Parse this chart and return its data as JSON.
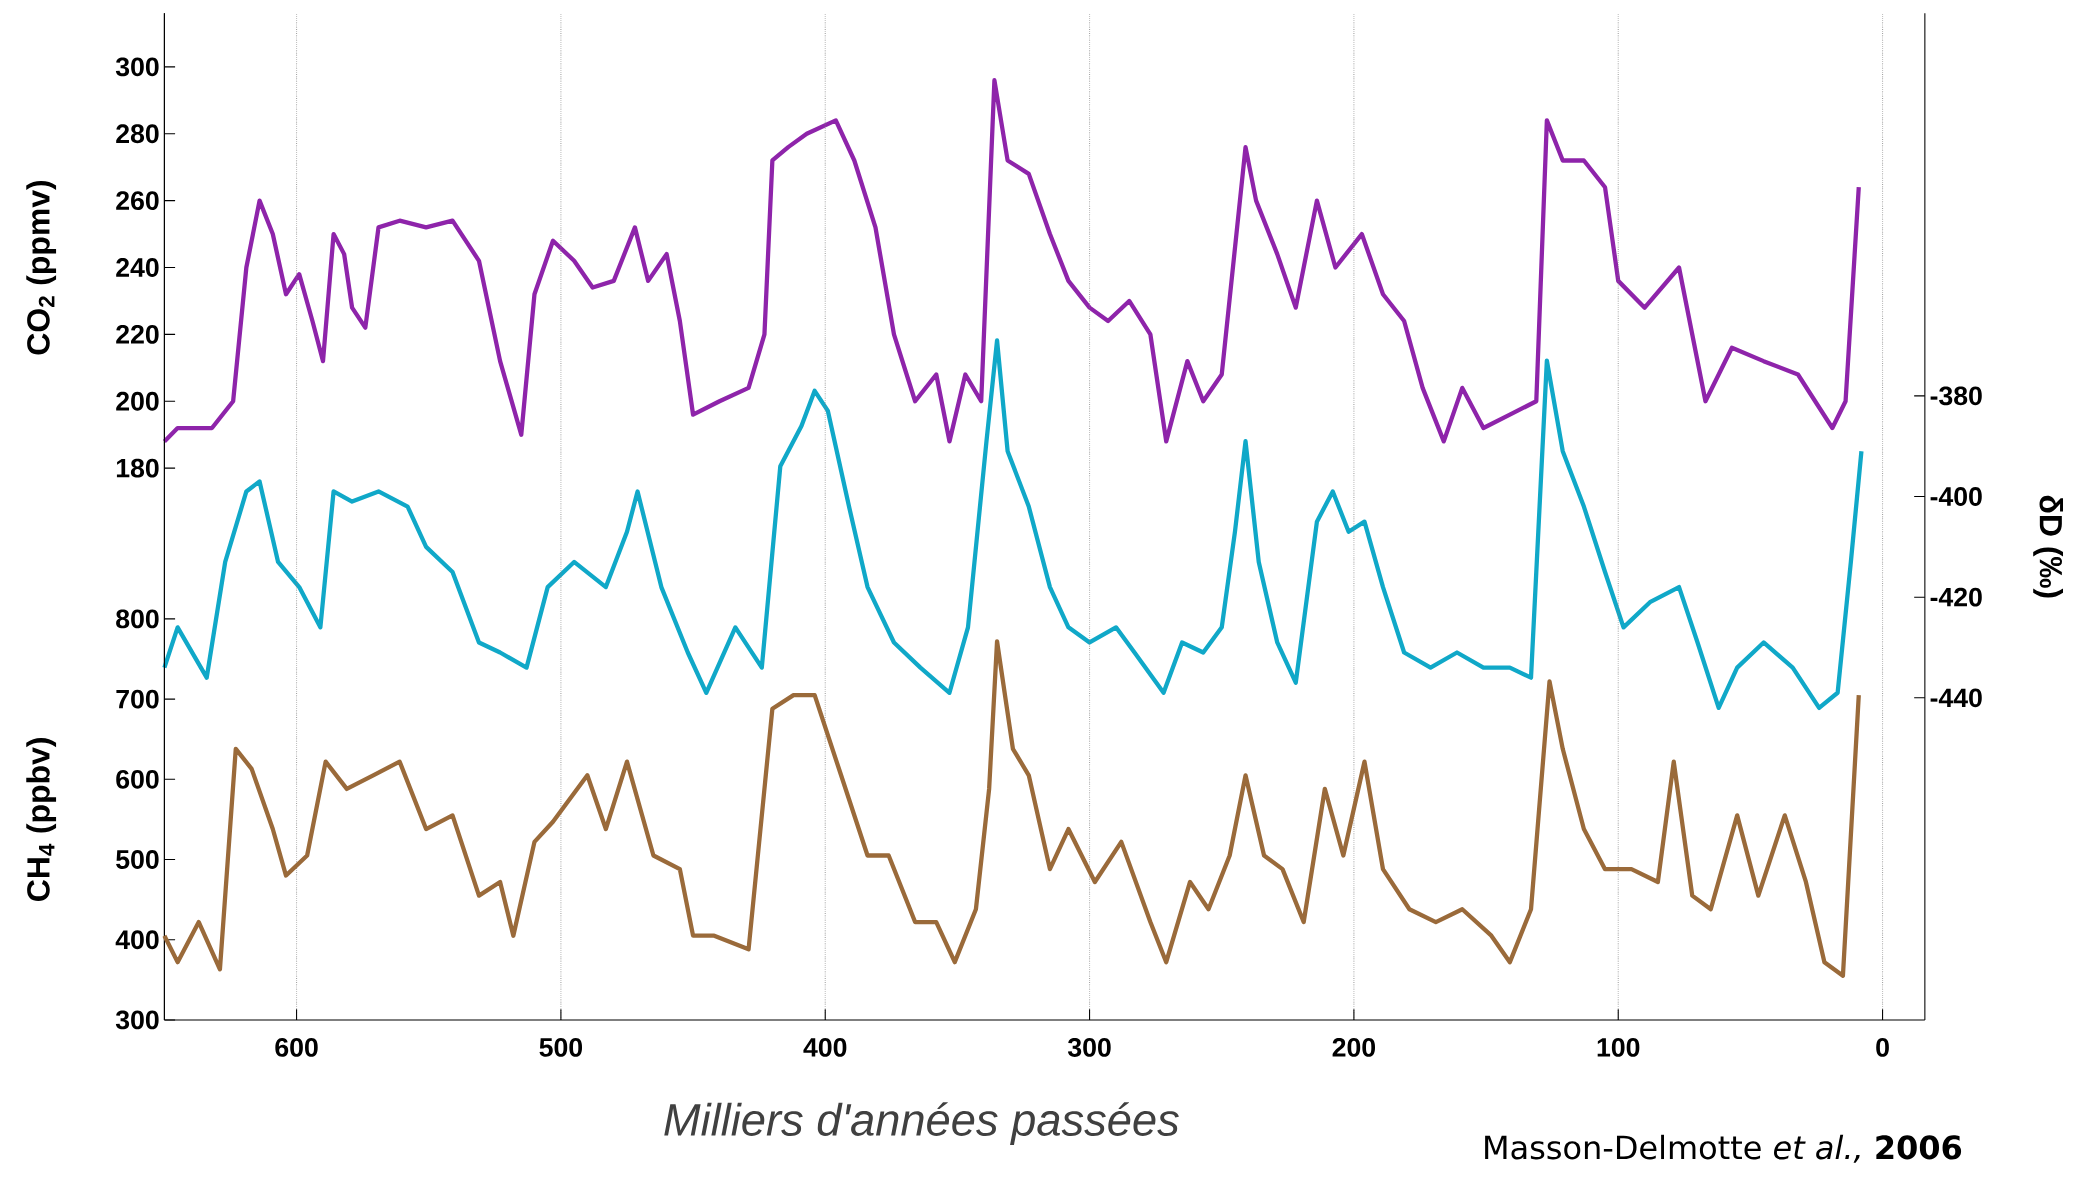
{
  "chart_data": [
    {
      "type": "line",
      "ylabel": "CO$_{2}$ (ppmv)",
      "xlim": [
        650,
        -16
      ],
      "ylim": [
        15,
        316
      ],
      "yticks": [
        180,
        200,
        220,
        240,
        260,
        280,
        300
      ],
      "tick_labels": "y",
      "series": [
        {
          "color": "#8e24aa",
          "x": [
            650,
            645,
            632,
            624,
            619,
            614,
            609,
            604,
            599,
            594,
            590,
            586,
            582,
            579,
            574,
            569,
            561,
            551,
            541,
            531,
            523,
            515,
            510,
            503,
            495,
            488,
            480,
            472,
            467,
            460,
            455,
            450,
            440,
            429,
            423,
            420,
            414,
            407,
            396,
            389,
            381,
            374,
            366,
            358,
            353,
            347,
            341,
            336,
            331,
            323,
            315,
            308,
            300,
            293,
            285,
            277,
            271,
            263,
            257,
            250,
            241,
            237,
            229,
            222,
            214,
            207,
            197,
            189,
            181,
            174,
            166,
            159,
            151,
            141,
            131,
            127,
            121,
            113,
            105,
            100,
            90,
            77,
            67,
            57,
            45,
            32,
            19,
            14,
            9
          ],
          "values": [
            188,
            192,
            192,
            200,
            240,
            260,
            250,
            232,
            238,
            224,
            212,
            250,
            244,
            228,
            222,
            252,
            254,
            252,
            254,
            242,
            212,
            190,
            232,
            248,
            242,
            234,
            236,
            252,
            236,
            244,
            224,
            196,
            200,
            204,
            220,
            272,
            276,
            280,
            284,
            272,
            252,
            220,
            200,
            208,
            188,
            208,
            200,
            296,
            272,
            268,
            250,
            236,
            228,
            224,
            230,
            220,
            188,
            212,
            200,
            208,
            276,
            260,
            244,
            228,
            260,
            240,
            250,
            232,
            224,
            204,
            188,
            204,
            192,
            196,
            200,
            284,
            272,
            272,
            264,
            236,
            228,
            240,
            200,
            216,
            212,
            208,
            192,
            200,
            264
          ]
        }
      ]
    },
    {
      "type": "line",
      "y2label": "δD (‰)",
      "xlim": [
        650,
        -16
      ],
      "y2lim": [
        -504,
        -304
      ],
      "y2ticks": [
        -440,
        -420,
        -400,
        -380
      ],
      "tick_labels": "y",
      "series": [
        {
          "color": "#10a8c8",
          "axis": "y2",
          "x": [
            650,
            645,
            634,
            627,
            619,
            614,
            607,
            599,
            591,
            586,
            579,
            569,
            558,
            551,
            541,
            531,
            523,
            513,
            505,
            495,
            483,
            475,
            471,
            462,
            452,
            445,
            434,
            424,
            417,
            409,
            404,
            399,
            391,
            384,
            374,
            364,
            353,
            346,
            339,
            335,
            331,
            323,
            315,
            308,
            300,
            290,
            283,
            272,
            265,
            257,
            250,
            245,
            241,
            236,
            229,
            222,
            214,
            208,
            202,
            196,
            189,
            181,
            171,
            161,
            151,
            141,
            133,
            127,
            121,
            113,
            105,
            98,
            88,
            77,
            70,
            62,
            55,
            45,
            34,
            24,
            17,
            12,
            8
          ],
          "values": [
            -434,
            -426,
            -436,
            -413,
            -399,
            -397,
            -413,
            -418,
            -426,
            -399,
            -401,
            -399,
            -402,
            -410,
            -415,
            -429,
            -431,
            -434,
            -418,
            -413,
            -418,
            -407,
            -399,
            -418,
            -431,
            -439,
            -426,
            -434,
            -394,
            -386,
            -379,
            -383,
            -402,
            -418,
            -429,
            -434,
            -439,
            -426,
            -389,
            -369,
            -391,
            -402,
            -418,
            -426,
            -429,
            -426,
            -431,
            -439,
            -429,
            -431,
            -426,
            -407,
            -389,
            -413,
            -429,
            -437,
            -405,
            -399,
            -407,
            -405,
            -418,
            -431,
            -434,
            -431,
            -434,
            -434,
            -436,
            -373,
            -391,
            -402,
            -415,
            -426,
            -421,
            -418,
            -429,
            -442,
            -434,
            -429,
            -434,
            -442,
            -439,
            -413,
            -391
          ]
        }
      ]
    },
    {
      "type": "line",
      "ylabel": "CH$_{4}$ (ppbv)",
      "xlabel": "Milliers d'années passées",
      "xlim": [
        650,
        -16
      ],
      "xticks": [
        600,
        500,
        400,
        300,
        200,
        100,
        0
      ],
      "ylim": [
        300,
        1555
      ],
      "yticks": [
        300,
        400,
        500,
        600,
        700,
        800
      ],
      "grid": "x",
      "annotations": [
        "Masson-Delmotte *et al.,* **2006**"
      ],
      "series": [
        {
          "color": "#9a6a3a",
          "x": [
            650,
            645,
            637,
            629,
            623,
            617,
            609,
            604,
            596,
            589,
            581,
            571,
            561,
            551,
            541,
            531,
            523,
            518,
            510,
            503,
            490,
            483,
            475,
            465,
            455,
            450,
            442,
            429,
            420,
            412,
            404,
            394,
            384,
            376,
            366,
            358,
            351,
            343,
            338,
            335,
            329,
            323,
            315,
            308,
            298,
            288,
            277,
            271,
            262,
            255,
            247,
            241,
            234,
            227,
            219,
            211,
            204,
            196,
            189,
            179,
            169,
            159,
            148,
            141,
            133,
            126,
            121,
            113,
            105,
            95,
            85,
            79,
            72,
            65,
            55,
            47,
            37,
            29,
            22,
            15,
            9
          ],
          "values": [
            405,
            372,
            422,
            363,
            638,
            613,
            538,
            480,
            505,
            622,
            588,
            605,
            622,
            538,
            555,
            455,
            472,
            405,
            522,
            547,
            605,
            538,
            622,
            505,
            488,
            405,
            405,
            388,
            688,
            705,
            705,
            605,
            505,
            505,
            422,
            422,
            372,
            438,
            588,
            772,
            638,
            605,
            488,
            538,
            472,
            522,
            422,
            372,
            472,
            438,
            505,
            605,
            505,
            488,
            422,
            588,
            505,
            622,
            488,
            438,
            422,
            438,
            405,
            372,
            438,
            722,
            638,
            538,
            488,
            488,
            472,
            622,
            455,
            438,
            555,
            455,
            555,
            472,
            372,
            355,
            705
          ]
        }
      ]
    }
  ]
}
